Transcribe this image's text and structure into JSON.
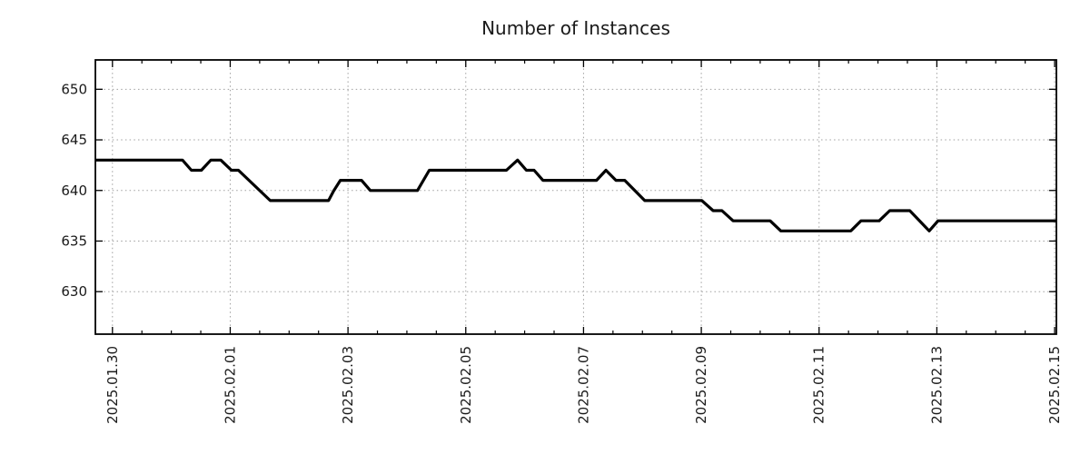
{
  "chart_data": {
    "type": "line",
    "title": "Number of Instances",
    "x_axis": {
      "tick_labels": [
        "2025.01.30",
        "2025.02.01",
        "2025.02.03",
        "2025.02.05",
        "2025.02.07",
        "2025.02.09",
        "2025.02.11",
        "2025.02.13",
        "2025.02.15"
      ],
      "tick_days": [
        0,
        2,
        4,
        6,
        8,
        10,
        12,
        14,
        16
      ],
      "minor_step_days": 0.5,
      "range_days": [
        -0.29,
        16.03
      ],
      "label_rotation_deg": 90
    },
    "y_axis": {
      "ticks": [
        630,
        635,
        640,
        645,
        650
      ],
      "range": [
        625.8,
        652.9
      ]
    },
    "grid": {
      "show": true,
      "color": "#a0a0a0",
      "style": "dotted"
    },
    "axis_color": "#000000",
    "legend": {
      "show": false
    },
    "series": [
      {
        "name": "Number of Instances",
        "color": "#000000",
        "points": [
          [
            -0.29,
            643
          ],
          [
            1.19,
            643
          ],
          [
            1.34,
            642
          ],
          [
            1.51,
            642
          ],
          [
            1.67,
            643
          ],
          [
            1.84,
            643
          ],
          [
            2.02,
            642
          ],
          [
            2.14,
            642
          ],
          [
            2.68,
            639
          ],
          [
            3.67,
            639
          ],
          [
            3.76,
            640
          ],
          [
            3.87,
            641
          ],
          [
            4.23,
            641
          ],
          [
            4.38,
            640
          ],
          [
            5.18,
            640
          ],
          [
            5.38,
            642
          ],
          [
            6.69,
            642
          ],
          [
            6.88,
            643
          ],
          [
            7.03,
            642
          ],
          [
            7.16,
            642
          ],
          [
            7.31,
            641
          ],
          [
            8.22,
            641
          ],
          [
            8.38,
            642
          ],
          [
            8.55,
            641
          ],
          [
            8.7,
            641
          ],
          [
            9.04,
            639
          ],
          [
            10.01,
            639
          ],
          [
            10.2,
            638
          ],
          [
            10.35,
            638
          ],
          [
            10.54,
            637
          ],
          [
            11.17,
            637
          ],
          [
            11.35,
            636
          ],
          [
            12.54,
            636
          ],
          [
            12.71,
            637
          ],
          [
            13.02,
            637
          ],
          [
            13.2,
            638
          ],
          [
            13.54,
            638
          ],
          [
            13.87,
            636
          ],
          [
            14.02,
            637
          ],
          [
            16.03,
            637
          ]
        ]
      }
    ]
  }
}
